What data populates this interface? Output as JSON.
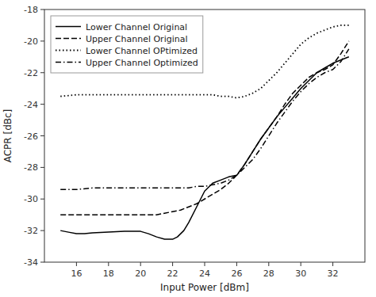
{
  "chart_data": {
    "type": "line",
    "xlabel": "Input Power [dBm]",
    "ylabel": "ACPR [dBc]",
    "xlim": [
      14,
      34
    ],
    "ylim": [
      -34,
      -18
    ],
    "xticks": [
      16,
      18,
      20,
      22,
      24,
      26,
      28,
      30,
      32
    ],
    "yticks": [
      -34,
      -32,
      -30,
      -28,
      -26,
      -24,
      -22,
      -20,
      -18
    ],
    "grid": false,
    "legend": "upper left",
    "series": [
      {
        "name": "Lower Channel Original",
        "color": "#000000",
        "line_style": "solid",
        "x": [
          15.0,
          15.5,
          16.0,
          16.5,
          17.0,
          18.0,
          19.0,
          20.0,
          20.5,
          21.0,
          21.5,
          22.0,
          22.3,
          22.7,
          23.0,
          23.5,
          24.0,
          24.5,
          25.0,
          25.5,
          26.0,
          26.5,
          27.0,
          27.5,
          28.0,
          28.5,
          29.0,
          29.5,
          30.0,
          30.5,
          31.0,
          31.5,
          32.0,
          32.5,
          33.0
        ],
        "values": [
          -32.0,
          -32.1,
          -32.2,
          -32.2,
          -32.15,
          -32.1,
          -32.05,
          -32.05,
          -32.2,
          -32.4,
          -32.55,
          -32.55,
          -32.4,
          -32.0,
          -31.5,
          -30.5,
          -29.5,
          -29.0,
          -28.8,
          -28.6,
          -28.5,
          -27.8,
          -27.0,
          -26.2,
          -25.5,
          -24.8,
          -24.2,
          -23.6,
          -23.0,
          -22.5,
          -22.0,
          -21.7,
          -21.4,
          -21.2,
          -21.0
        ]
      },
      {
        "name": "Upper Channel Original",
        "color": "#000000",
        "line_style": "dashed",
        "x": [
          15.0,
          16.0,
          17.0,
          18.0,
          19.0,
          20.0,
          21.0,
          21.5,
          22.0,
          22.5,
          23.0,
          23.5,
          24.0,
          24.5,
          25.0,
          25.5,
          26.0,
          26.5,
          27.0,
          27.5,
          28.0,
          28.5,
          29.0,
          29.5,
          30.0,
          30.5,
          31.0,
          31.5,
          32.0,
          32.5,
          33.0
        ],
        "values": [
          -31.0,
          -31.0,
          -31.0,
          -31.0,
          -31.0,
          -31.0,
          -31.0,
          -30.9,
          -30.8,
          -30.7,
          -30.5,
          -30.3,
          -30.0,
          -29.7,
          -29.4,
          -29.0,
          -28.5,
          -27.8,
          -27.0,
          -26.2,
          -25.5,
          -24.8,
          -24.0,
          -23.3,
          -22.8,
          -22.3,
          -22.0,
          -21.8,
          -21.5,
          -20.8,
          -20.0
        ]
      },
      {
        "name": "Lower Channel OPtimized",
        "color": "#000000",
        "line_style": "dotted",
        "x": [
          15.0,
          16.0,
          17.0,
          18.0,
          19.0,
          20.0,
          21.0,
          22.0,
          23.0,
          24.0,
          24.5,
          25.0,
          25.5,
          26.0,
          26.5,
          27.0,
          27.5,
          28.0,
          28.5,
          29.0,
          29.5,
          30.0,
          30.5,
          31.0,
          31.5,
          32.0,
          32.5,
          33.0
        ],
        "values": [
          -23.5,
          -23.4,
          -23.4,
          -23.4,
          -23.4,
          -23.4,
          -23.4,
          -23.4,
          -23.4,
          -23.4,
          -23.4,
          -23.5,
          -23.5,
          -23.6,
          -23.5,
          -23.3,
          -23.0,
          -22.5,
          -22.0,
          -21.4,
          -20.8,
          -20.2,
          -19.8,
          -19.5,
          -19.3,
          -19.1,
          -19.0,
          -19.0
        ]
      },
      {
        "name": "Upper Channel Optimized",
        "color": "#000000",
        "line_style": "dashdot",
        "x": [
          15.0,
          16.0,
          17.0,
          18.0,
          19.0,
          20.0,
          21.0,
          22.0,
          22.5,
          23.0,
          23.5,
          24.0,
          24.5,
          25.0,
          25.5,
          26.0,
          26.5,
          27.0,
          27.5,
          28.0,
          28.5,
          29.0,
          29.5,
          30.0,
          30.5,
          31.0,
          31.5,
          32.0,
          32.5,
          33.0
        ],
        "values": [
          -29.4,
          -29.4,
          -29.3,
          -29.3,
          -29.3,
          -29.3,
          -29.3,
          -29.3,
          -29.3,
          -29.3,
          -29.2,
          -29.2,
          -29.1,
          -29.0,
          -28.8,
          -28.5,
          -28.0,
          -27.5,
          -26.8,
          -26.0,
          -25.2,
          -24.5,
          -23.8,
          -23.2,
          -22.7,
          -22.3,
          -22.0,
          -21.8,
          -21.3,
          -20.5
        ]
      }
    ]
  }
}
